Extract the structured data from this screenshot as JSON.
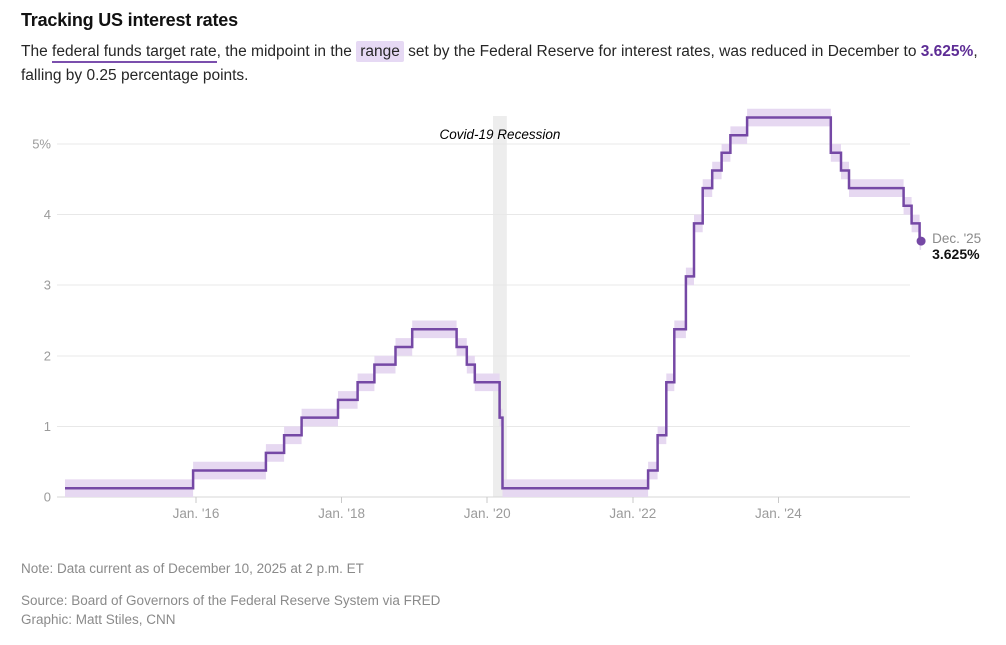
{
  "header": {
    "title": "Tracking US interest rates",
    "subtitle": {
      "lead": "The ",
      "underlined_term": "federal funds target rate",
      "mid1": ", the midpoint in the ",
      "highlighted_term": "range",
      "mid2": " set by the Federal Reserve for interest rates, was reduced in December to ",
      "rate_value": "3.625%",
      "tail": ", falling by 0.25 percentage points."
    }
  },
  "chart_data": {
    "type": "line",
    "subtype": "step-line-with-range-band",
    "title": "",
    "xlabel": "",
    "ylabel": "",
    "grid": true,
    "ylim": [
      0,
      5.5
    ],
    "xlim_years": [
      2014.2,
      2026.1
    ],
    "range_halfwidth": 0.125,
    "y_ticks": [
      {
        "v": 0,
        "label": "0"
      },
      {
        "v": 1,
        "label": "1"
      },
      {
        "v": 2,
        "label": "2"
      },
      {
        "v": 3,
        "label": "3"
      },
      {
        "v": 4,
        "label": "4"
      },
      {
        "v": 5,
        "label": "5%"
      }
    ],
    "x_ticks": [
      {
        "t": 2016,
        "label": "Jan. '16"
      },
      {
        "t": 2018,
        "label": "Jan. '18"
      },
      {
        "t": 2020,
        "label": "Jan. '20"
      },
      {
        "t": 2022,
        "label": "Jan. '22"
      },
      {
        "t": 2024,
        "label": "Jan. '24"
      }
    ],
    "steps": [
      {
        "t": 2014.2,
        "v": 0.125
      },
      {
        "t": 2015.96,
        "v": 0.375
      },
      {
        "t": 2016.96,
        "v": 0.625
      },
      {
        "t": 2017.21,
        "v": 0.875
      },
      {
        "t": 2017.45,
        "v": 1.125
      },
      {
        "t": 2017.95,
        "v": 1.375
      },
      {
        "t": 2018.22,
        "v": 1.625
      },
      {
        "t": 2018.45,
        "v": 1.875
      },
      {
        "t": 2018.74,
        "v": 2.125
      },
      {
        "t": 2018.97,
        "v": 2.375
      },
      {
        "t": 2019.58,
        "v": 2.125
      },
      {
        "t": 2019.72,
        "v": 1.875
      },
      {
        "t": 2019.83,
        "v": 1.625
      },
      {
        "t": 2020.17,
        "v": 1.125
      },
      {
        "t": 2020.21,
        "v": 0.125
      },
      {
        "t": 2022.21,
        "v": 0.375
      },
      {
        "t": 2022.34,
        "v": 0.875
      },
      {
        "t": 2022.46,
        "v": 1.625
      },
      {
        "t": 2022.57,
        "v": 2.375
      },
      {
        "t": 2022.73,
        "v": 3.125
      },
      {
        "t": 2022.84,
        "v": 3.875
      },
      {
        "t": 2022.96,
        "v": 4.375
      },
      {
        "t": 2023.09,
        "v": 4.625
      },
      {
        "t": 2023.22,
        "v": 4.875
      },
      {
        "t": 2023.34,
        "v": 5.125
      },
      {
        "t": 2023.57,
        "v": 5.375
      },
      {
        "t": 2024.72,
        "v": 4.875
      },
      {
        "t": 2024.86,
        "v": 4.625
      },
      {
        "t": 2024.97,
        "v": 4.375
      },
      {
        "t": 2025.72,
        "v": 4.125
      },
      {
        "t": 2025.83,
        "v": 3.875
      },
      {
        "t": 2025.94,
        "v": 3.625
      }
    ],
    "x_end": 2025.96,
    "end_point": {
      "v": 3.625,
      "label_date": "Dec. '25",
      "label_value": "3.625%"
    },
    "recession_band": {
      "label": "Covid-19 Recession",
      "t_start": 2020.08,
      "t_end": 2020.27
    }
  },
  "footer": {
    "note": "Note: Data current as of December 10, 2025 at 2 p.m. ET",
    "source": "Source: Board of Governors of the Federal Reserve System via FRED",
    "credit": "Graphic: Matt Stiles, CNN"
  },
  "colors": {
    "accent_purple": "#7548a5",
    "band_purple": "#e6d8f1",
    "value_purple": "#5d2c95",
    "underline_purple": "#7b4fad",
    "highlight_bg": "#e6d9f4",
    "recession_gray": "#ededed",
    "grid_gray": "#e8e8e8",
    "axis_gray": "#d7d7d7",
    "tick_gray": "#c9c9c9",
    "tick_label_gray": "#9b9b9b",
    "muted_text": "#8a8a8a",
    "annotation_text": "#000000",
    "end_label_dark": "#111111"
  }
}
